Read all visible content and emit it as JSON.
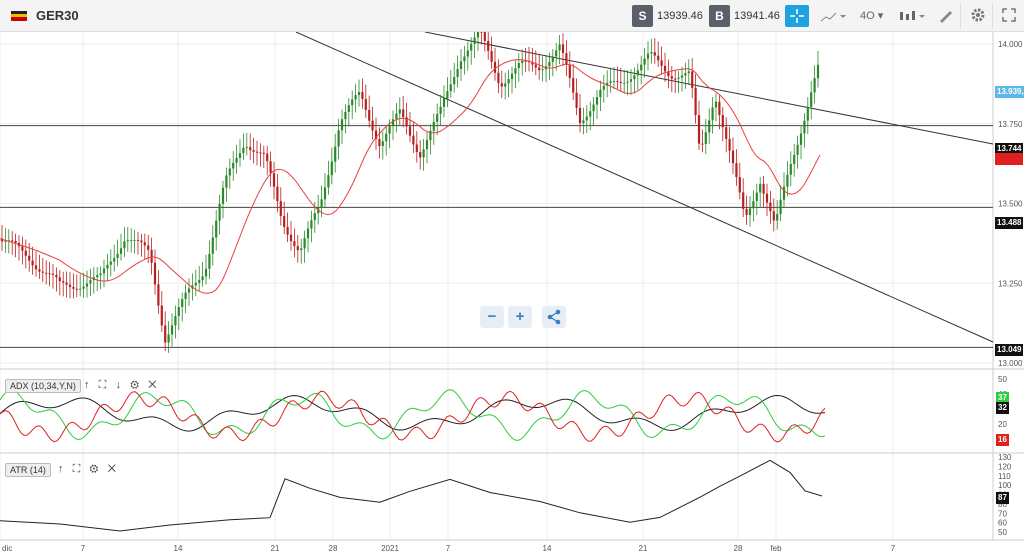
{
  "toolbar": {
    "instrument": "GER30",
    "sell_tag": "S",
    "sell_price": "13939.46",
    "buy_tag": "B",
    "buy_price": "13941.46",
    "timeframe": "4O",
    "icons": [
      "crosshair-icon",
      "chart-type-icon",
      "candles-icon",
      "drawing-icon",
      "gear-icon",
      "maximize-icon"
    ]
  },
  "price_axis": {
    "ticks": [
      {
        "v": 14000,
        "label": "14.000"
      },
      {
        "v": 13750,
        "label": "13.750"
      },
      {
        "v": 13500,
        "label": "13.500"
      },
      {
        "v": 13250,
        "label": "13.250"
      },
      {
        "v": 13000,
        "label": "13.000"
      }
    ],
    "levels": [
      {
        "v": 13744,
        "label": "13.744"
      },
      {
        "v": 13488,
        "label": "13.488"
      },
      {
        "v": 13049,
        "label": "13.049"
      }
    ],
    "current": {
      "v": 13939,
      "label": "13.939,4"
    },
    "ma_value": {
      "v": 13715,
      "label": "13.715"
    }
  },
  "date_axis": [
    "dic",
    "7",
    "14",
    "21",
    "28",
    "2021",
    "7",
    "14",
    "21",
    "28",
    "feb",
    "7"
  ],
  "adx": {
    "label": "ADX (10,34,Y,N)",
    "ticks": [
      "50",
      "40",
      "30",
      "20",
      "10"
    ],
    "badges": [
      {
        "value": "37",
        "color": "#2ecc40"
      },
      {
        "value": "32",
        "color": "#111111"
      },
      {
        "value": "16",
        "color": "#e02020"
      }
    ]
  },
  "atr": {
    "label": "ATR (14)",
    "ticks": [
      "130",
      "120",
      "110",
      "100",
      "90",
      "80",
      "70",
      "60",
      "50"
    ],
    "badge": "87"
  },
  "colors": {
    "accent": "#1fa3e0",
    "ma": "#e84040",
    "bull": "#2a8a2a",
    "bear": "#b82020"
  }
}
